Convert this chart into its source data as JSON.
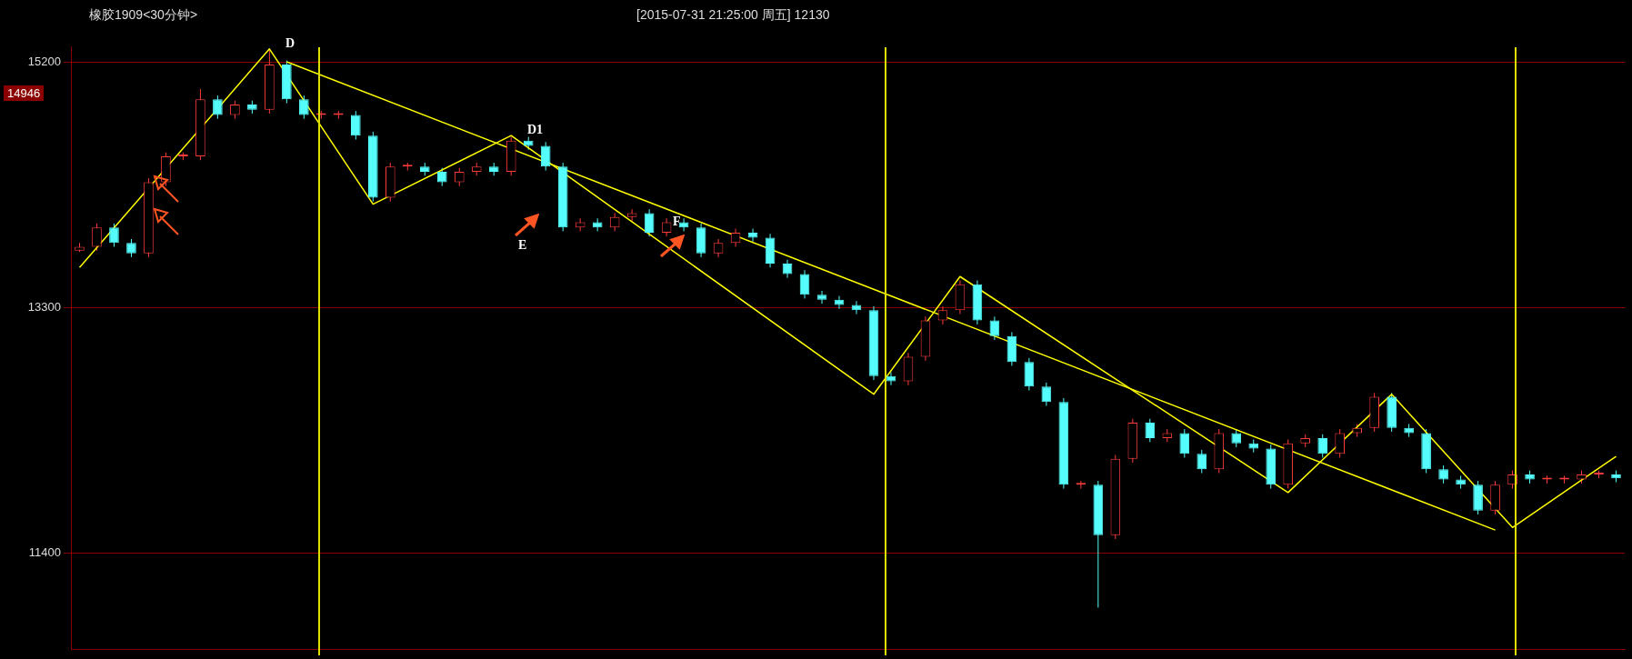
{
  "chart_data": {
    "type": "candlestick",
    "annotations": [
      "橡胶1909<30分钟>",
      "[2015-07-31  21:25:00 周五]    12130",
      "D",
      "D1",
      "E",
      "F",
      "14946"
    ],
    "categories": [
      null,
      null,
      null,
      null,
      null,
      null,
      null,
      null,
      null,
      null,
      null,
      null,
      null,
      null,
      null,
      null,
      null,
      null,
      null,
      null,
      null,
      null,
      null,
      null,
      null,
      null,
      null,
      null,
      null,
      null,
      null,
      null,
      null,
      null,
      null,
      null,
      null,
      null,
      null,
      null,
      null,
      null,
      null,
      null,
      null,
      null,
      null,
      null,
      null,
      null,
      null,
      null,
      null,
      null,
      null,
      null,
      null,
      null,
      null,
      null,
      null,
      null,
      null,
      null,
      null,
      null,
      null,
      null,
      null,
      null,
      null,
      null,
      null,
      null,
      null,
      null,
      null,
      null,
      null,
      null,
      null,
      null,
      null,
      null,
      null,
      null,
      null,
      null,
      null,
      null
    ],
    "ohlc": [
      [
        13740,
        13800,
        13730,
        13770
      ],
      [
        13770,
        13950,
        13740,
        13920
      ],
      [
        13920,
        13950,
        13770,
        13800
      ],
      [
        13800,
        13830,
        13690,
        13720
      ],
      [
        13720,
        14300,
        13690,
        14270
      ],
      [
        14270,
        14500,
        14240,
        14470
      ],
      [
        14470,
        14500,
        14440,
        14470
      ],
      [
        14470,
        14990,
        14440,
        14910
      ],
      [
        14910,
        14940,
        14760,
        14790
      ],
      [
        14790,
        14900,
        14760,
        14870
      ],
      [
        14870,
        14900,
        14800,
        14830
      ],
      [
        14830,
        15300,
        14800,
        15180
      ],
      [
        15180,
        15210,
        14880,
        14910
      ],
      [
        14910,
        14940,
        14760,
        14790
      ],
      [
        14790,
        14820,
        14760,
        14790
      ],
      [
        14790,
        14820,
        14760,
        14790
      ],
      [
        14790,
        14820,
        14600,
        14630
      ],
      [
        14630,
        14660,
        14120,
        14150
      ],
      [
        14150,
        14420,
        14120,
        14390
      ],
      [
        14390,
        14420,
        14360,
        14390
      ],
      [
        14390,
        14420,
        14320,
        14350
      ],
      [
        14350,
        14380,
        14240,
        14270
      ],
      [
        14270,
        14380,
        14240,
        14350
      ],
      [
        14350,
        14420,
        14320,
        14390
      ],
      [
        14390,
        14420,
        14320,
        14350
      ],
      [
        14350,
        14620,
        14320,
        14590
      ],
      [
        14590,
        14620,
        14520,
        14550
      ],
      [
        14550,
        14580,
        14360,
        14390
      ],
      [
        14390,
        14420,
        13890,
        13920
      ],
      [
        13920,
        13990,
        13890,
        13960
      ],
      [
        13960,
        13990,
        13890,
        13920
      ],
      [
        13920,
        14030,
        13890,
        14000
      ],
      [
        14000,
        14060,
        13970,
        14030
      ],
      [
        14030,
        14060,
        13850,
        13880
      ],
      [
        13880,
        13990,
        13850,
        13960
      ],
      [
        13960,
        13990,
        13890,
        13920
      ],
      [
        13920,
        13950,
        13690,
        13720
      ],
      [
        13720,
        13830,
        13690,
        13800
      ],
      [
        13800,
        13910,
        13770,
        13880
      ],
      [
        13880,
        13910,
        13810,
        13840
      ],
      [
        13840,
        13870,
        13610,
        13640
      ],
      [
        13640,
        13670,
        13530,
        13560
      ],
      [
        13560,
        13590,
        13370,
        13400
      ],
      [
        13400,
        13430,
        13330,
        13360
      ],
      [
        13360,
        13390,
        13290,
        13320
      ],
      [
        13320,
        13350,
        13250,
        13280
      ],
      [
        13280,
        13310,
        12740,
        12770
      ],
      [
        12770,
        12800,
        12700,
        12730
      ],
      [
        12730,
        12950,
        12700,
        12920
      ],
      [
        12920,
        13230,
        12890,
        13200
      ],
      [
        13200,
        13310,
        13170,
        13280
      ],
      [
        13280,
        13510,
        13250,
        13480
      ],
      [
        13480,
        13510,
        13170,
        13200
      ],
      [
        13200,
        13230,
        13050,
        13080
      ],
      [
        13080,
        13110,
        12850,
        12880
      ],
      [
        12880,
        12910,
        12660,
        12690
      ],
      [
        12690,
        12720,
        12540,
        12570
      ],
      [
        12570,
        12600,
        11900,
        11930
      ],
      [
        11930,
        11960,
        11900,
        11930
      ],
      [
        11930,
        11960,
        10980,
        11540
      ],
      [
        11540,
        12160,
        11510,
        12130
      ],
      [
        12130,
        12440,
        12100,
        12410
      ],
      [
        12410,
        12440,
        12260,
        12290
      ],
      [
        12290,
        12360,
        12260,
        12330
      ],
      [
        12330,
        12360,
        12140,
        12170
      ],
      [
        12170,
        12200,
        12020,
        12050
      ],
      [
        12050,
        12360,
        12020,
        12330
      ],
      [
        12330,
        12360,
        12220,
        12250
      ],
      [
        12250,
        12280,
        12180,
        12210
      ],
      [
        12210,
        12240,
        11900,
        11930
      ],
      [
        11930,
        12280,
        11900,
        12250
      ],
      [
        12250,
        12320,
        12220,
        12290
      ],
      [
        12290,
        12320,
        12140,
        12170
      ],
      [
        12170,
        12360,
        12140,
        12330
      ],
      [
        12330,
        12400,
        12300,
        12370
      ],
      [
        12370,
        12640,
        12340,
        12610
      ],
      [
        12610,
        12640,
        12340,
        12370
      ],
      [
        12370,
        12400,
        12300,
        12330
      ],
      [
        12330,
        12360,
        12020,
        12050
      ],
      [
        12050,
        12080,
        11940,
        11970
      ],
      [
        11970,
        12000,
        11900,
        11930
      ],
      [
        11930,
        11960,
        11700,
        11730
      ],
      [
        11730,
        11960,
        11700,
        11930
      ],
      [
        11930,
        12040,
        11900,
        12010
      ],
      [
        12010,
        12040,
        11940,
        11970
      ],
      [
        11970,
        12000,
        11940,
        11970
      ],
      [
        11970,
        12000,
        11940,
        11970
      ],
      [
        11970,
        12040,
        11940,
        12010
      ],
      [
        12010,
        12040,
        11980,
        12010
      ],
      [
        12010,
        12040,
        11950,
        11980
      ]
    ],
    "series": [
      {
        "type": "line",
        "color": "#ffff00",
        "values": [
          13610,
          null,
          null,
          null,
          null,
          null,
          null,
          null,
          null,
          null,
          null,
          15300,
          null,
          null,
          null,
          null,
          null,
          14100,
          null,
          null,
          null,
          null,
          null,
          null,
          null,
          14630,
          null,
          null,
          null,
          null,
          null,
          null,
          null,
          null,
          null,
          null,
          null,
          null,
          null,
          null,
          null,
          null,
          null,
          null,
          null,
          null,
          12630,
          null,
          null,
          null,
          null,
          13540,
          null,
          null,
          null,
          null,
          null,
          null,
          null,
          null,
          null,
          null,
          null,
          null,
          null,
          null,
          null,
          null,
          null,
          null,
          11870,
          null,
          null,
          null,
          null,
          null,
          12630,
          null,
          null,
          null,
          null,
          null,
          null,
          11600,
          null,
          null,
          null,
          null,
          null,
          12150
        ]
      },
      {
        "type": "line",
        "color": "#ffff00",
        "values": [
          null,
          null,
          null,
          null,
          null,
          null,
          null,
          null,
          null,
          null,
          null,
          null,
          15200,
          null,
          null,
          null,
          null,
          null,
          null,
          null,
          null,
          null,
          null,
          null,
          null,
          null,
          null,
          null,
          null,
          null,
          null,
          null,
          null,
          null,
          null,
          null,
          null,
          null,
          null,
          null,
          null,
          null,
          null,
          null,
          null,
          null,
          null,
          null,
          null,
          null,
          null,
          null,
          null,
          null,
          null,
          null,
          null,
          null,
          null,
          null,
          null,
          null,
          null,
          null,
          null,
          null,
          null,
          null,
          null,
          null,
          null,
          null,
          null,
          null,
          null,
          null,
          null,
          null,
          null,
          null,
          null,
          null,
          11580,
          null,
          null,
          null,
          null,
          null,
          null,
          null
        ]
      }
    ],
    "ylim": [
      10660,
      15320
    ],
    "yticks": [
      11400,
      13300,
      15200
    ],
    "grid": "y",
    "tick_labels": "y"
  }
}
